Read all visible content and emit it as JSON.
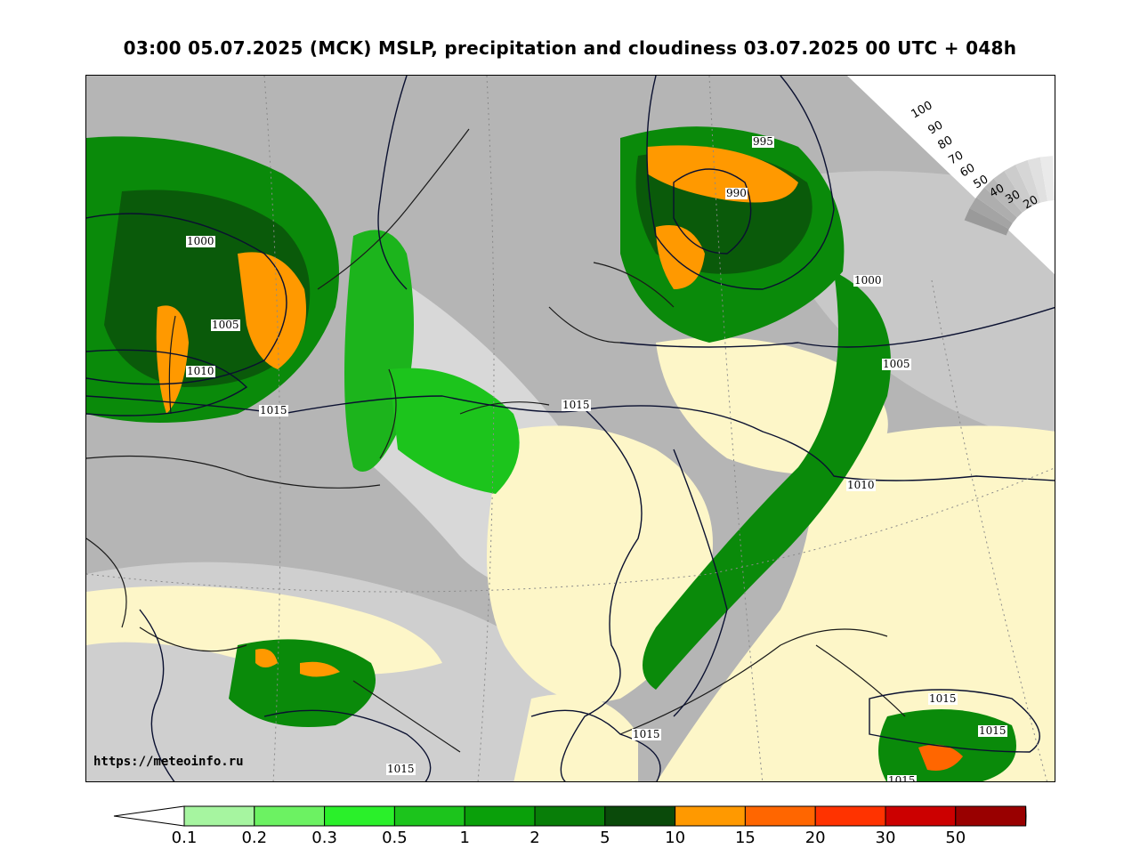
{
  "title": "03:00 05.07.2025 (MCK) MSLP, precipitation and cloudiness 03.07.2025 00 UTC + 048h",
  "attribution": "https://meteoinfo.ru",
  "map": {
    "isobar_labels": [
      "995",
      "990",
      "1000",
      "1005",
      "1010",
      "1015",
      "1000",
      "1005",
      "1010",
      "1015",
      "1015",
      "1015",
      "1015",
      "1015",
      "1015"
    ],
    "colors": {
      "water_cloud": "#bdbdbd",
      "clear": "#fdf6c8",
      "isobar": "#0a1030"
    }
  },
  "cloudiness_scale": {
    "labels": [
      "100",
      "90",
      "80",
      "70",
      "60",
      "50",
      "40",
      "30",
      "20"
    ],
    "colors": [
      "#9a9a9a",
      "#a4a4a4",
      "#aeaeae",
      "#b8b8b8",
      "#c2c2c2",
      "#cccccc",
      "#d6d6d6",
      "#e0e0e0",
      "#eaeaea"
    ]
  },
  "precip_legend": {
    "ticks": [
      "0.1",
      "0.2",
      "0.3",
      "0.5",
      "1",
      "2",
      "5",
      "10",
      "15",
      "20",
      "30",
      "50"
    ],
    "colors": [
      "#a6f5a0",
      "#6cf262",
      "#2af02a",
      "#1cc41c",
      "#0aa00a",
      "#087e08",
      "#0a4a0a",
      "#ff9900",
      "#ff6600",
      "#ff3300",
      "#cc0000",
      "#990000"
    ],
    "under_color": "#ffffff",
    "over_color": "#000000"
  }
}
